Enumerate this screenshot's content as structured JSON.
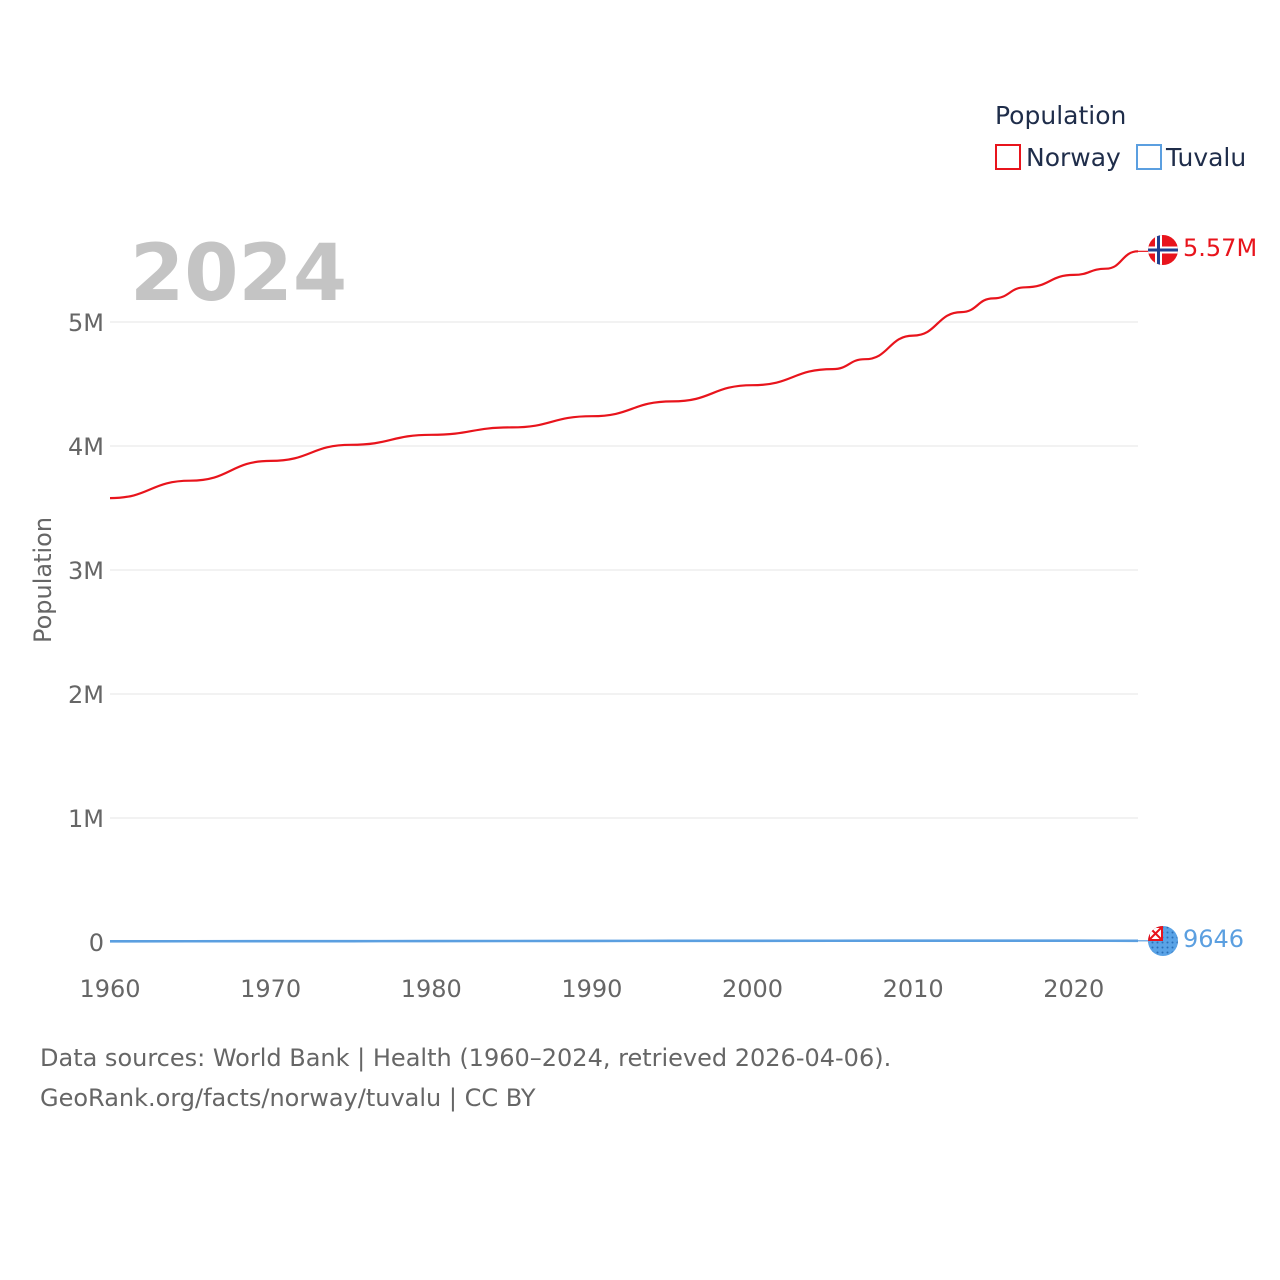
{
  "chart_data": {
    "type": "line",
    "current_year": "2024",
    "ylabel": "Population",
    "legend_title": "Population",
    "xlim": [
      1960,
      2024
    ],
    "ylim": [
      0,
      5000000
    ],
    "x_ticks": [
      1960,
      1970,
      1980,
      1990,
      2000,
      2010,
      2020
    ],
    "y_ticks": [
      {
        "value": 0,
        "label": "0"
      },
      {
        "value": 1000000,
        "label": "1M"
      },
      {
        "value": 2000000,
        "label": "2M"
      },
      {
        "value": 3000000,
        "label": "3M"
      },
      {
        "value": 4000000,
        "label": "4M"
      },
      {
        "value": 5000000,
        "label": "5M"
      }
    ],
    "series": [
      {
        "name": "Norway",
        "color": "#e8141c",
        "end_label": "5.57M",
        "flag_icon": "norway-flag-icon",
        "x": [
          1960,
          1965,
          1970,
          1975,
          1980,
          1985,
          1990,
          1995,
          2000,
          2005,
          2007,
          2010,
          2013,
          2015,
          2017,
          2020,
          2022,
          2024
        ],
        "values": [
          3580000,
          3720000,
          3880000,
          4010000,
          4090000,
          4150000,
          4240000,
          4360000,
          4490000,
          4620000,
          4700000,
          4890000,
          5080000,
          5190000,
          5280000,
          5380000,
          5430000,
          5570000
        ]
      },
      {
        "name": "Tuvalu",
        "color": "#5b9fe0",
        "end_label": "9646",
        "flag_icon": "tuvalu-flag-icon",
        "x": [
          1960,
          1970,
          1980,
          1990,
          2000,
          2010,
          2020,
          2024
        ],
        "values": [
          6000,
          6500,
          7600,
          8900,
          9400,
          10500,
          10500,
          9646
        ]
      }
    ]
  },
  "footer": {
    "sources": "Data sources: World Bank | Health (1960–2024, retrieved 2026-04-06).",
    "attribution": "GeoRank.org/facts/norway/tuvalu | CC BY"
  }
}
